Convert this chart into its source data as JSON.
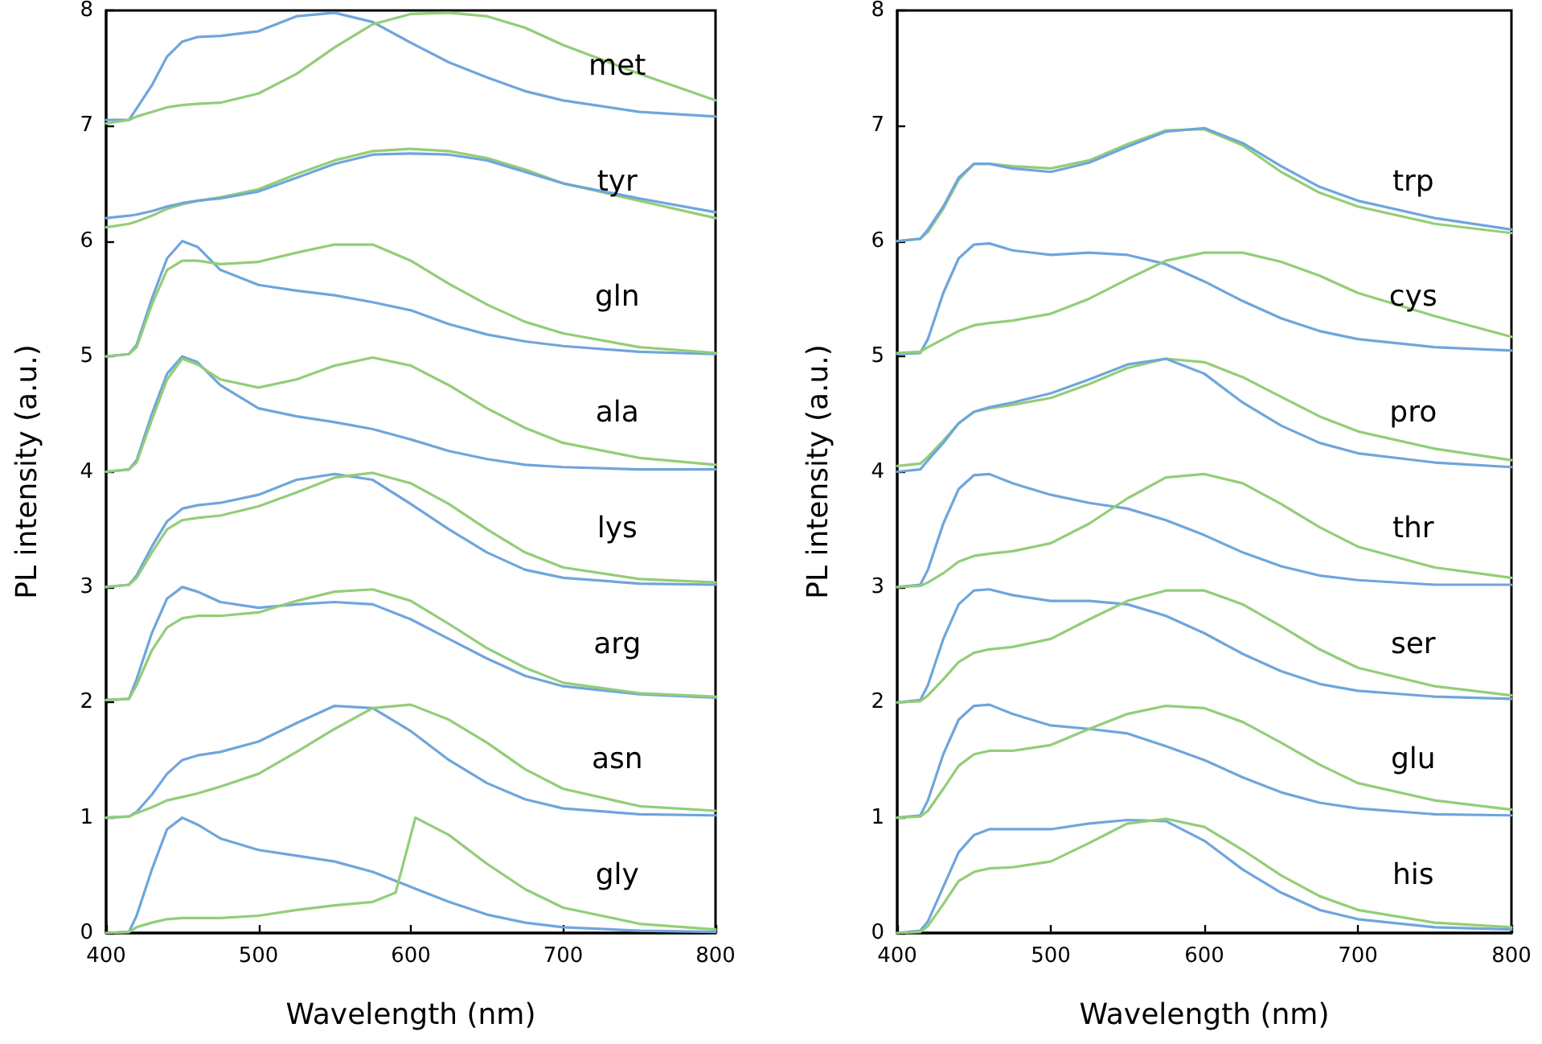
{
  "chart_data": [
    {
      "type": "line",
      "xlabel": "Wavelength (nm)",
      "ylabel": "PL intensity (a.u.)",
      "xlim": [
        400,
        800
      ],
      "xticks": [
        400,
        500,
        600,
        700,
        800
      ],
      "ylim": [
        0,
        8
      ],
      "yticks": [
        0,
        1,
        2,
        3,
        4,
        5,
        6,
        7,
        8
      ],
      "marker": "none",
      "line_style": "solid",
      "x": [
        400,
        415,
        420,
        430,
        440,
        450,
        460,
        475,
        500,
        525,
        550,
        575,
        600,
        625,
        650,
        675,
        700,
        750,
        800
      ],
      "series": [
        {
          "color": "#6fa5dc",
          "values": [
            7.05,
            7.05,
            7.15,
            7.35,
            7.6,
            7.73,
            7.77,
            7.78,
            7.82,
            7.95,
            7.98,
            7.9,
            7.72,
            7.55,
            7.42,
            7.3,
            7.22,
            7.12,
            7.08
          ]
        },
        {
          "color": "#93cd78",
          "values": [
            7.02,
            7.05,
            7.08,
            7.12,
            7.16,
            7.18,
            7.19,
            7.2,
            7.28,
            7.45,
            7.68,
            7.88,
            7.97,
            7.98,
            7.95,
            7.85,
            7.7,
            7.45,
            7.22
          ]
        },
        {
          "color": "#93cd78",
          "values": [
            6.12,
            6.15,
            6.17,
            6.22,
            6.28,
            6.32,
            6.35,
            6.38,
            6.45,
            6.58,
            6.7,
            6.78,
            6.8,
            6.78,
            6.72,
            6.62,
            6.5,
            6.35,
            6.2
          ]
        },
        {
          "color": "#6fa5dc",
          "values": [
            6.2,
            6.22,
            6.23,
            6.26,
            6.3,
            6.33,
            6.35,
            6.37,
            6.43,
            6.55,
            6.67,
            6.75,
            6.76,
            6.75,
            6.7,
            6.6,
            6.5,
            6.37,
            6.25
          ]
        },
        {
          "color": "#6fa5dc",
          "values": [
            5,
            5.02,
            5.1,
            5.5,
            5.85,
            6,
            5.95,
            5.75,
            5.62,
            5.57,
            5.53,
            5.47,
            5.4,
            5.28,
            5.19,
            5.13,
            5.09,
            5.04,
            5.02
          ]
        },
        {
          "color": "#93cd78",
          "values": [
            5,
            5.02,
            5.08,
            5.45,
            5.75,
            5.83,
            5.83,
            5.8,
            5.82,
            5.9,
            5.97,
            5.97,
            5.83,
            5.63,
            5.45,
            5.3,
            5.2,
            5.08,
            5.03
          ]
        },
        {
          "color": "#6fa5dc",
          "values": [
            4,
            4.02,
            4.1,
            4.5,
            4.85,
            5,
            4.95,
            4.75,
            4.55,
            4.48,
            4.43,
            4.37,
            4.28,
            4.18,
            4.11,
            4.06,
            4.04,
            4.02,
            4.02
          ]
        },
        {
          "color": "#93cd78",
          "values": [
            4,
            4.02,
            4.08,
            4.45,
            4.8,
            4.98,
            4.93,
            4.8,
            4.73,
            4.8,
            4.92,
            4.99,
            4.92,
            4.75,
            4.55,
            4.38,
            4.25,
            4.12,
            4.06
          ]
        },
        {
          "color": "#6fa5dc",
          "values": [
            3,
            3.02,
            3.1,
            3.35,
            3.57,
            3.68,
            3.71,
            3.73,
            3.8,
            3.93,
            3.98,
            3.93,
            3.72,
            3.5,
            3.3,
            3.15,
            3.08,
            3.03,
            3.02
          ]
        },
        {
          "color": "#93cd78",
          "values": [
            3,
            3.02,
            3.08,
            3.3,
            3.5,
            3.58,
            3.6,
            3.62,
            3.7,
            3.82,
            3.95,
            3.99,
            3.9,
            3.72,
            3.5,
            3.3,
            3.17,
            3.07,
            3.04
          ]
        },
        {
          "color": "#6fa5dc",
          "values": [
            2.02,
            2.03,
            2.2,
            2.6,
            2.9,
            3,
            2.96,
            2.87,
            2.82,
            2.85,
            2.87,
            2.85,
            2.72,
            2.55,
            2.38,
            2.23,
            2.14,
            2.07,
            2.04
          ]
        },
        {
          "color": "#93cd78",
          "values": [
            2.02,
            2.03,
            2.15,
            2.45,
            2.65,
            2.73,
            2.75,
            2.75,
            2.78,
            2.88,
            2.96,
            2.98,
            2.88,
            2.68,
            2.47,
            2.3,
            2.17,
            2.08,
            2.05
          ]
        },
        {
          "color": "#6fa5dc",
          "values": [
            1,
            1.01,
            1.05,
            1.2,
            1.38,
            1.5,
            1.54,
            1.57,
            1.66,
            1.82,
            1.97,
            1.95,
            1.75,
            1.5,
            1.3,
            1.16,
            1.08,
            1.03,
            1.02
          ]
        },
        {
          "color": "#93cd78",
          "values": [
            1,
            1.01,
            1.04,
            1.09,
            1.15,
            1.18,
            1.21,
            1.27,
            1.38,
            1.57,
            1.77,
            1.95,
            1.98,
            1.85,
            1.65,
            1.42,
            1.25,
            1.1,
            1.06
          ]
        },
        {
          "color": "#6fa5dc",
          "values": [
            0,
            0.01,
            0.15,
            0.55,
            0.9,
            1,
            0.94,
            0.82,
            0.72,
            0.67,
            0.62,
            0.53,
            0.4,
            0.27,
            0.16,
            0.09,
            0.05,
            0.02,
            0.01
          ]
        },
        {
          "color": "#93cd78",
          "x": [
            400,
            415,
            420,
            430,
            440,
            450,
            460,
            475,
            500,
            525,
            550,
            575,
            590,
            603,
            625,
            650,
            675,
            700,
            750,
            800
          ],
          "values": [
            0,
            0.01,
            0.05,
            0.09,
            0.12,
            0.13,
            0.13,
            0.13,
            0.15,
            0.2,
            0.24,
            0.27,
            0.35,
            1,
            0.85,
            0.6,
            0.38,
            0.22,
            0.08,
            0.03
          ]
        }
      ],
      "annotations": [
        "met",
        "tyr",
        "gln",
        "ala",
        "lys",
        "arg",
        "asn",
        "gly"
      ]
    },
    {
      "type": "line",
      "xlabel": "Wavelength (nm)",
      "ylabel": "PL intensity (a.u.)",
      "xlim": [
        400,
        800
      ],
      "xticks": [
        400,
        500,
        600,
        700,
        800
      ],
      "ylim": [
        0,
        8
      ],
      "yticks": [
        0,
        1,
        2,
        3,
        4,
        5,
        6,
        7,
        8
      ],
      "marker": "none",
      "line_style": "solid",
      "x": [
        400,
        415,
        420,
        430,
        440,
        450,
        460,
        475,
        500,
        525,
        550,
        575,
        600,
        625,
        650,
        675,
        700,
        750,
        800
      ],
      "series": [
        {
          "color": "#93cd78",
          "values": [
            6,
            6.02,
            6.08,
            6.28,
            6.53,
            6.67,
            6.67,
            6.65,
            6.63,
            6.7,
            6.84,
            6.96,
            6.97,
            6.83,
            6.6,
            6.42,
            6.3,
            6.15,
            6.07
          ]
        },
        {
          "color": "#6fa5dc",
          "values": [
            6,
            6.02,
            6.1,
            6.3,
            6.55,
            6.67,
            6.67,
            6.63,
            6.6,
            6.68,
            6.82,
            6.95,
            6.98,
            6.85,
            6.65,
            6.47,
            6.35,
            6.2,
            6.1
          ]
        },
        {
          "color": "#6fa5dc",
          "values": [
            5.02,
            5.03,
            5.15,
            5.55,
            5.85,
            5.97,
            5.98,
            5.92,
            5.88,
            5.9,
            5.88,
            5.8,
            5.65,
            5.48,
            5.33,
            5.22,
            5.15,
            5.08,
            5.05
          ]
        },
        {
          "color": "#93cd78",
          "values": [
            5.03,
            5.04,
            5.08,
            5.15,
            5.22,
            5.27,
            5.29,
            5.31,
            5.37,
            5.5,
            5.67,
            5.83,
            5.9,
            5.9,
            5.82,
            5.7,
            5.55,
            5.35,
            5.17
          ]
        },
        {
          "color": "#93cd78",
          "values": [
            4.05,
            4.07,
            4.13,
            4.27,
            4.42,
            4.52,
            4.55,
            4.58,
            4.64,
            4.76,
            4.9,
            4.98,
            4.95,
            4.82,
            4.65,
            4.48,
            4.35,
            4.2,
            4.1
          ]
        },
        {
          "color": "#6fa5dc",
          "values": [
            4,
            4.02,
            4.1,
            4.25,
            4.42,
            4.52,
            4.56,
            4.6,
            4.68,
            4.8,
            4.93,
            4.98,
            4.85,
            4.6,
            4.4,
            4.25,
            4.16,
            4.08,
            4.04
          ]
        },
        {
          "color": "#6fa5dc",
          "values": [
            3,
            3.02,
            3.15,
            3.55,
            3.85,
            3.97,
            3.98,
            3.9,
            3.8,
            3.73,
            3.68,
            3.58,
            3.45,
            3.3,
            3.18,
            3.1,
            3.06,
            3.02,
            3.02
          ]
        },
        {
          "color": "#93cd78",
          "values": [
            3,
            3.01,
            3.04,
            3.12,
            3.22,
            3.27,
            3.29,
            3.31,
            3.38,
            3.55,
            3.77,
            3.95,
            3.98,
            3.9,
            3.72,
            3.52,
            3.35,
            3.17,
            3.08
          ]
        },
        {
          "color": "#6fa5dc",
          "values": [
            2,
            2.02,
            2.15,
            2.55,
            2.85,
            2.97,
            2.98,
            2.93,
            2.88,
            2.88,
            2.85,
            2.75,
            2.6,
            2.42,
            2.27,
            2.16,
            2.1,
            2.05,
            2.03
          ]
        },
        {
          "color": "#93cd78",
          "values": [
            2,
            2.01,
            2.06,
            2.2,
            2.35,
            2.43,
            2.46,
            2.48,
            2.55,
            2.72,
            2.88,
            2.97,
            2.97,
            2.85,
            2.66,
            2.46,
            2.3,
            2.14,
            2.06
          ]
        },
        {
          "color": "#6fa5dc",
          "values": [
            1,
            1.02,
            1.15,
            1.55,
            1.85,
            1.97,
            1.98,
            1.9,
            1.8,
            1.77,
            1.73,
            1.62,
            1.5,
            1.35,
            1.22,
            1.13,
            1.08,
            1.03,
            1.02
          ]
        },
        {
          "color": "#93cd78",
          "values": [
            1,
            1.01,
            1.06,
            1.25,
            1.45,
            1.55,
            1.58,
            1.58,
            1.63,
            1.77,
            1.9,
            1.97,
            1.95,
            1.83,
            1.65,
            1.46,
            1.3,
            1.15,
            1.07
          ]
        },
        {
          "color": "#6fa5dc",
          "values": [
            0,
            0.02,
            0.1,
            0.4,
            0.7,
            0.85,
            0.9,
            0.9,
            0.9,
            0.95,
            0.98,
            0.97,
            0.8,
            0.55,
            0.35,
            0.2,
            0.12,
            0.05,
            0.03
          ]
        },
        {
          "color": "#93cd78",
          "values": [
            0,
            0.01,
            0.06,
            0.25,
            0.45,
            0.53,
            0.56,
            0.57,
            0.62,
            0.78,
            0.95,
            0.99,
            0.92,
            0.72,
            0.5,
            0.32,
            0.2,
            0.09,
            0.05
          ]
        }
      ],
      "annotations": [
        "trp",
        "cys",
        "pro",
        "thr",
        "ser",
        "glu",
        "his"
      ]
    }
  ]
}
